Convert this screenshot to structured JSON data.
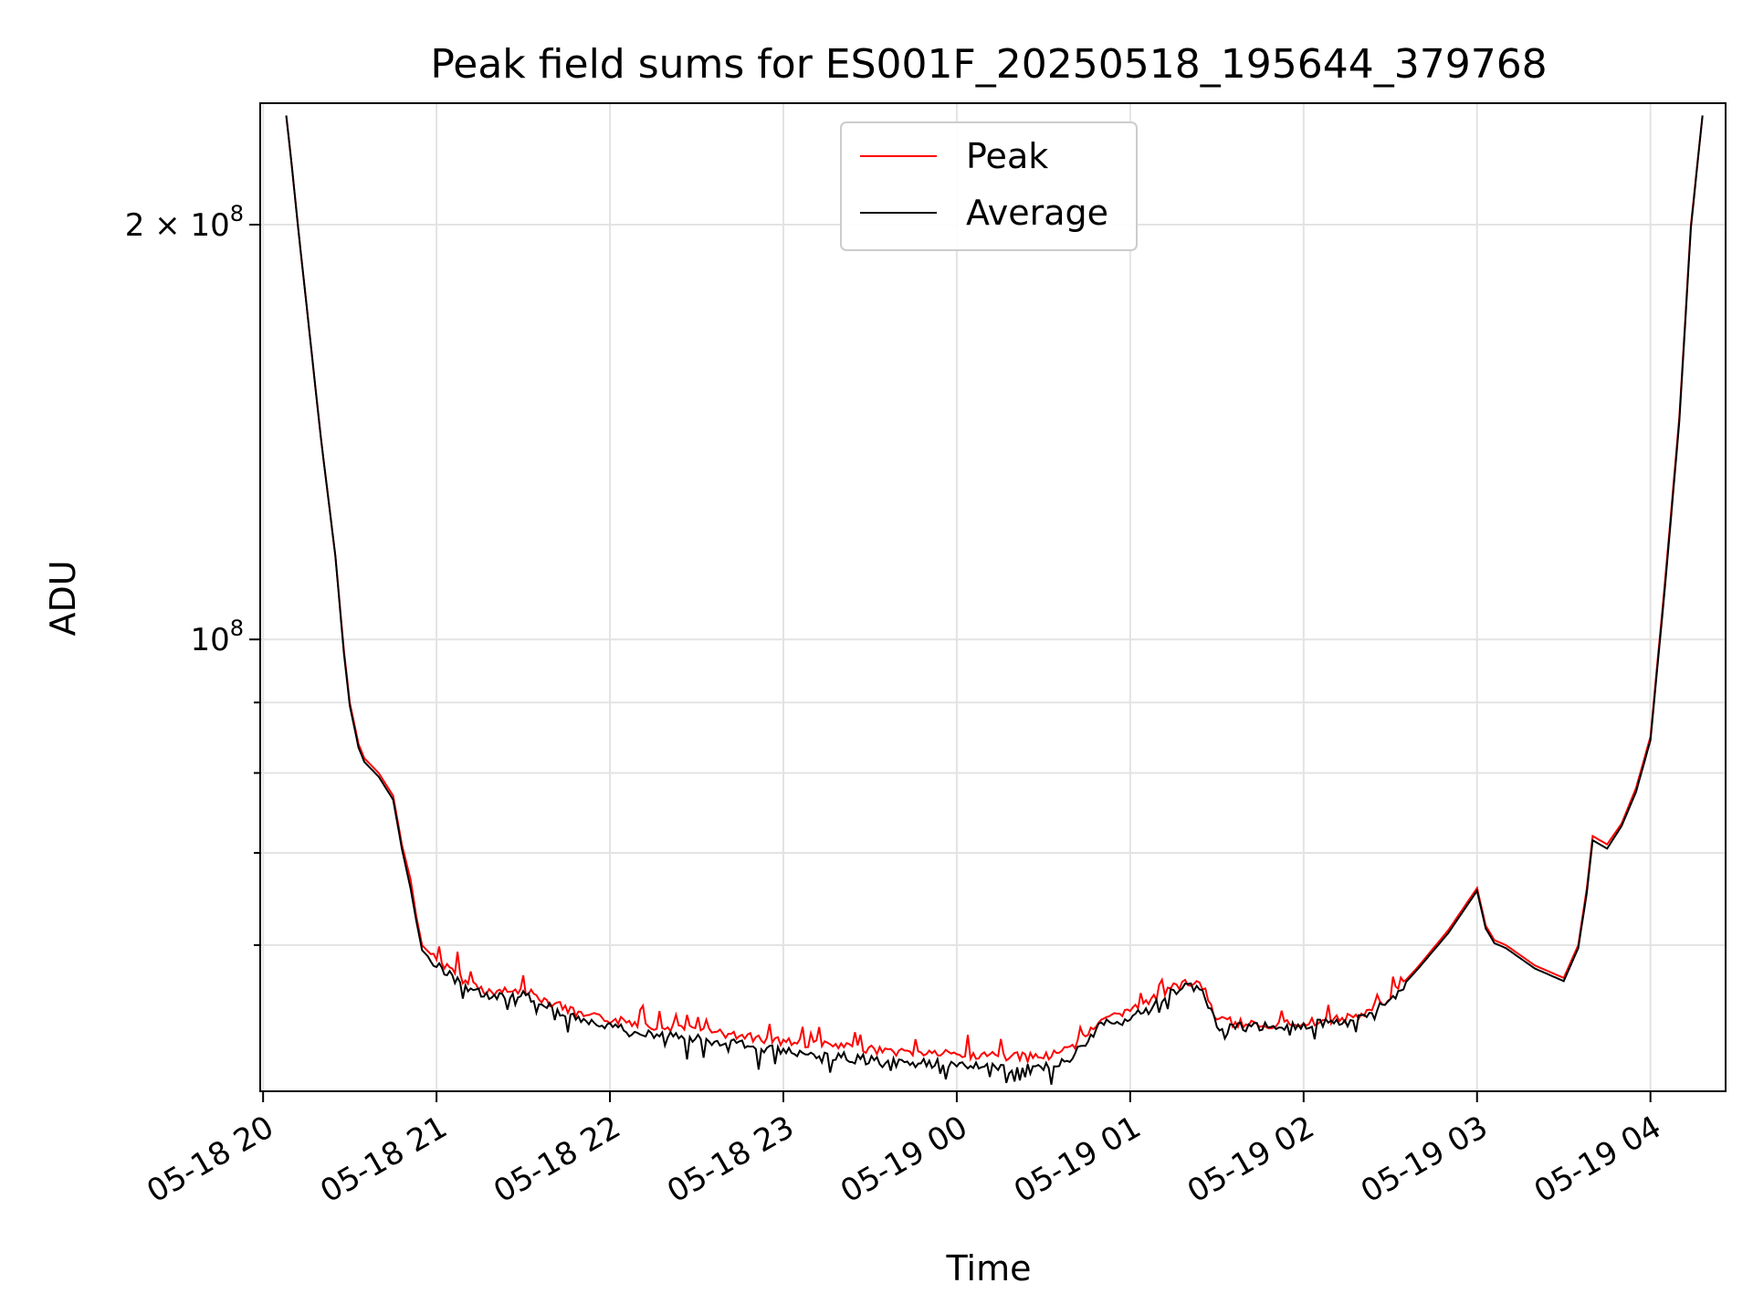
{
  "chart_data": {
    "type": "line",
    "title": "Peak field sums for ES001F_20250518_195644_379768",
    "xlabel": "Time",
    "ylabel": "ADU",
    "y_scale": "log",
    "ylim": [
      47000000,
      245000000
    ],
    "xlim": [
      "2025-05-18 19:59",
      "2025-05-19 04:26"
    ],
    "grid": true,
    "legend_placement": "upper center",
    "x_ticks": [
      {
        "value": "2025-05-18 20:00",
        "label": "05-18 20"
      },
      {
        "value": "2025-05-18 21:00",
        "label": "05-18 21"
      },
      {
        "value": "2025-05-18 22:00",
        "label": "05-18 22"
      },
      {
        "value": "2025-05-18 23:00",
        "label": "05-18 23"
      },
      {
        "value": "2025-05-19 00:00",
        "label": "05-19 00"
      },
      {
        "value": "2025-05-19 01:00",
        "label": "05-19 01"
      },
      {
        "value": "2025-05-19 02:00",
        "label": "05-19 02"
      },
      {
        "value": "2025-05-19 03:00",
        "label": "05-19 03"
      },
      {
        "value": "2025-05-19 04:00",
        "label": "05-19 04"
      }
    ],
    "y_ticks": [
      {
        "value": 100000000,
        "label_base": "10",
        "label_exp": "8"
      },
      {
        "value": 200000000,
        "label_base": "2 × 10",
        "label_exp": "8"
      }
    ],
    "y_minor_ticks": [
      60000000,
      70000000,
      80000000,
      90000000
    ],
    "series": [
      {
        "name": "Peak",
        "color": "#ff0000",
        "x": [
          "2025-05-18 20:08",
          "2025-05-18 20:10",
          "2025-05-18 20:12",
          "2025-05-18 20:15",
          "2025-05-18 20:20",
          "2025-05-18 20:25",
          "2025-05-18 20:28",
          "2025-05-18 20:30",
          "2025-05-18 20:33",
          "2025-05-18 20:35",
          "2025-05-18 20:40",
          "2025-05-18 20:45",
          "2025-05-18 20:48",
          "2025-05-18 20:51",
          "2025-05-18 20:53",
          "2025-05-18 20:55",
          "2025-05-18 21:00",
          "2025-05-18 21:10",
          "2025-05-18 21:20",
          "2025-05-18 21:30",
          "2025-05-18 21:40",
          "2025-05-18 21:50",
          "2025-05-18 22:00",
          "2025-05-18 22:20",
          "2025-05-18 22:40",
          "2025-05-18 23:00",
          "2025-05-18 23:20",
          "2025-05-18 23:40",
          "2025-05-19 00:00",
          "2025-05-19 00:20",
          "2025-05-19 00:30",
          "2025-05-19 00:40",
          "2025-05-19 00:50",
          "2025-05-19 01:00",
          "2025-05-19 01:10",
          "2025-05-19 01:15",
          "2025-05-19 01:20",
          "2025-05-19 01:25",
          "2025-05-19 01:30",
          "2025-05-19 01:40",
          "2025-05-19 02:00",
          "2025-05-19 02:20",
          "2025-05-19 02:30",
          "2025-05-19 02:40",
          "2025-05-19 02:50",
          "2025-05-19 03:00",
          "2025-05-19 03:03",
          "2025-05-19 03:06",
          "2025-05-19 03:10",
          "2025-05-19 03:20",
          "2025-05-19 03:30",
          "2025-05-19 03:35",
          "2025-05-19 03:38",
          "2025-05-19 03:40",
          "2025-05-19 03:45",
          "2025-05-19 03:50",
          "2025-05-19 03:55",
          "2025-05-19 04:00",
          "2025-05-19 04:05",
          "2025-05-19 04:10",
          "2025-05-19 04:14",
          "2025-05-19 04:18"
        ],
        "values": [
          240000000,
          220000000,
          200000000,
          175000000,
          140000000,
          115000000,
          98000000,
          90000000,
          84000000,
          82000000,
          80000000,
          77000000,
          71000000,
          67000000,
          63000000,
          60000000,
          58500000,
          56500000,
          55300000,
          55600000,
          54500000,
          53300000,
          53000000,
          52300000,
          51700000,
          51100000,
          50600000,
          50200000,
          50000000,
          49800000,
          49700000,
          50600000,
          53000000,
          53600000,
          55000000,
          55900000,
          56400000,
          56000000,
          53000000,
          52500000,
          52700000,
          53300000,
          55000000,
          58000000,
          61500000,
          66000000,
          62000000,
          60500000,
          60000000,
          58000000,
          56800000,
          60000000,
          66000000,
          72000000,
          71000000,
          73500000,
          78000000,
          85000000,
          110000000,
          145000000,
          200000000,
          240000000
        ]
      },
      {
        "name": "Average",
        "color": "#000000",
        "x": [
          "2025-05-18 20:08",
          "2025-05-18 20:10",
          "2025-05-18 20:12",
          "2025-05-18 20:15",
          "2025-05-18 20:20",
          "2025-05-18 20:25",
          "2025-05-18 20:28",
          "2025-05-18 20:30",
          "2025-05-18 20:33",
          "2025-05-18 20:35",
          "2025-05-18 20:40",
          "2025-05-18 20:45",
          "2025-05-18 20:48",
          "2025-05-18 20:51",
          "2025-05-18 20:53",
          "2025-05-18 20:55",
          "2025-05-18 21:00",
          "2025-05-18 21:10",
          "2025-05-18 21:20",
          "2025-05-18 21:30",
          "2025-05-18 21:40",
          "2025-05-18 21:50",
          "2025-05-18 22:00",
          "2025-05-18 22:20",
          "2025-05-18 22:40",
          "2025-05-18 23:00",
          "2025-05-18 23:20",
          "2025-05-18 23:40",
          "2025-05-19 00:00",
          "2025-05-19 00:20",
          "2025-05-19 00:30",
          "2025-05-19 00:40",
          "2025-05-19 00:50",
          "2025-05-19 01:00",
          "2025-05-19 01:10",
          "2025-05-19 01:15",
          "2025-05-19 01:20",
          "2025-05-19 01:25",
          "2025-05-19 01:30",
          "2025-05-19 01:40",
          "2025-05-19 02:00",
          "2025-05-19 02:20",
          "2025-05-19 02:30",
          "2025-05-19 02:40",
          "2025-05-19 02:50",
          "2025-05-19 03:00",
          "2025-05-19 03:03",
          "2025-05-19 03:06",
          "2025-05-19 03:10",
          "2025-05-19 03:20",
          "2025-05-19 03:30",
          "2025-05-19 03:35",
          "2025-05-19 03:38",
          "2025-05-19 03:40",
          "2025-05-19 03:45",
          "2025-05-19 03:50",
          "2025-05-19 03:55",
          "2025-05-19 04:00",
          "2025-05-19 04:05",
          "2025-05-19 04:10",
          "2025-05-19 04:14",
          "2025-05-19 04:18"
        ],
        "values": [
          240000000,
          220000000,
          200000000,
          175000000,
          140000000,
          115000000,
          97500000,
          89500000,
          83500000,
          81500000,
          79500000,
          76500000,
          70500000,
          66000000,
          62500000,
          59500000,
          58000000,
          56000000,
          55000000,
          55300000,
          54000000,
          52800000,
          52300000,
          51600000,
          51000000,
          50300000,
          49800000,
          49300000,
          49200000,
          49000000,
          48900000,
          49800000,
          52500000,
          53200000,
          54600000,
          55500000,
          56000000,
          55600000,
          52600000,
          52300000,
          52500000,
          53100000,
          54800000,
          57800000,
          61200000,
          65700000,
          61700000,
          60200000,
          59700000,
          57700000,
          56500000,
          59700000,
          65500000,
          71500000,
          70500000,
          73200000,
          77500000,
          84500000,
          109000000,
          144000000,
          199000000,
          240000000
        ]
      }
    ]
  }
}
